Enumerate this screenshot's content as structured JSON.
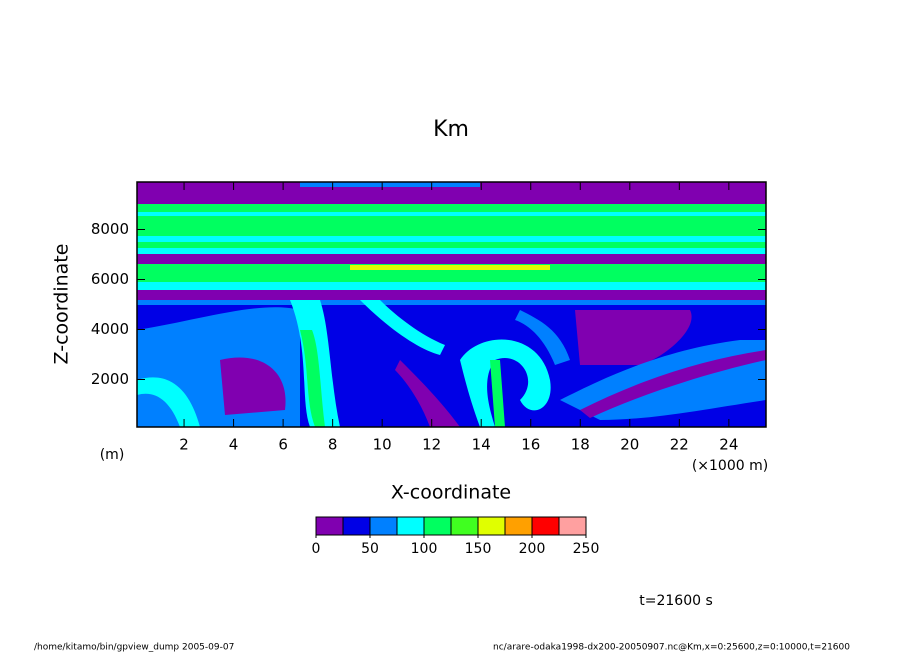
{
  "chart_data": {
    "type": "contour",
    "title": "Km",
    "x_label": "X-coordinate",
    "y_label": "Z-coordinate",
    "y_unit": "(m)",
    "x_unit": "(×1000 m)",
    "xlim": [
      0.1,
      25.5
    ],
    "xticks": [
      2,
      4,
      6,
      8,
      10,
      12,
      14,
      16,
      18,
      20,
      22,
      24
    ],
    "ylim": [
      100,
      9900
    ],
    "yticks": [
      2000,
      4000,
      6000,
      8000
    ],
    "colorbar": {
      "levels": [
        0,
        25,
        50,
        75,
        100,
        125,
        150,
        175,
        200,
        225,
        250
      ],
      "colors": [
        "#8000b0",
        "#0000e6",
        "#0080ff",
        "#00ffff",
        "#00ff60",
        "#40ff20",
        "#e0ff00",
        "#ffa000",
        "#ff0000",
        "#ffa0a0"
      ],
      "ticks": [
        0,
        50,
        100,
        150,
        200,
        250
      ]
    },
    "time_label": "t=21600 s",
    "footer_left": "/home/kitamo/bin/gpview_dump  2005-09-07",
    "footer_right": "nc/arare-odaka1998-dx200-20050907.nc@Km,x=0:25600,z=0:10000,t=21600"
  }
}
